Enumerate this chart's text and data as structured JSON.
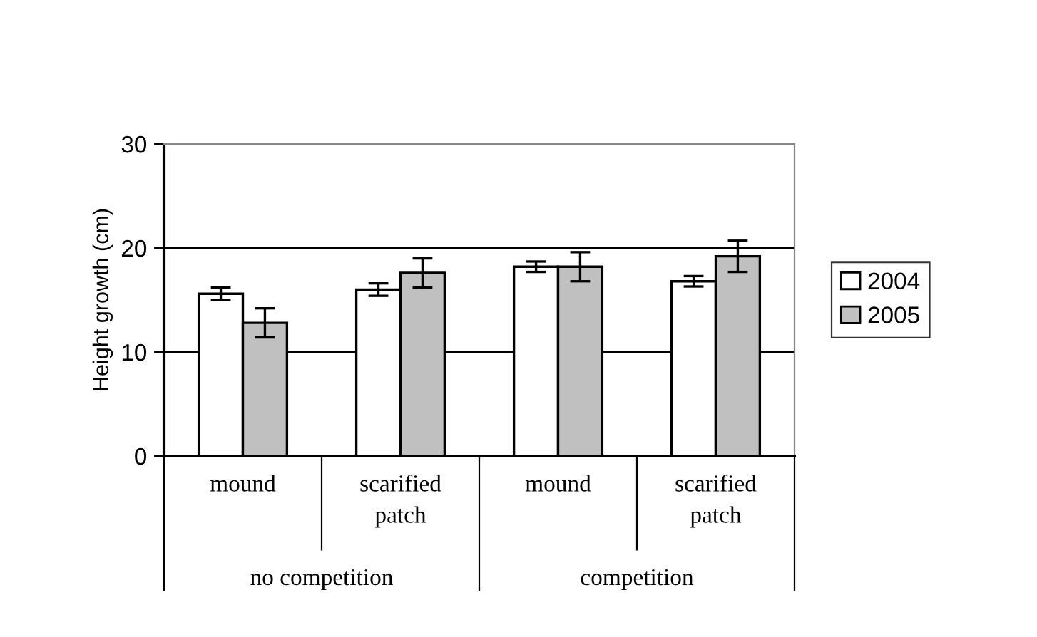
{
  "chart_data": {
    "type": "bar",
    "ylabel": "Height growth (cm)",
    "categories": [
      "mound",
      "scarified\npatch",
      "mound",
      "scarified\npatch"
    ],
    "series": [
      {
        "name": "2004",
        "color": "#ffffff",
        "values": [
          15.6,
          16.0,
          18.2,
          16.8
        ],
        "errors": [
          0.6,
          0.6,
          0.5,
          0.5
        ]
      },
      {
        "name": "2005",
        "color": "#c0c0c0",
        "values": [
          12.8,
          17.6,
          18.2,
          19.2
        ],
        "errors": [
          1.4,
          1.4,
          1.4,
          1.5
        ]
      }
    ],
    "annotations": [
      "no competition",
      "competition"
    ],
    "ylim": [
      0,
      30
    ],
    "yticks": [
      0,
      10,
      20,
      30
    ],
    "grid": "y",
    "legend": "right"
  }
}
